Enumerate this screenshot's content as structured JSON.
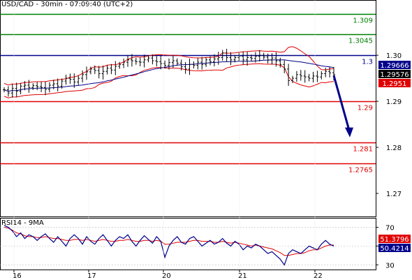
{
  "chart_data": {
    "type": "line",
    "title": "USD/CAD - 30min - 07:09:40 (UTC+2)",
    "price_axis": {
      "ylim": [
        1.265,
        1.312
      ],
      "ticks": [
        "1.30",
        "1.29",
        "1.28",
        "1.27"
      ]
    },
    "x_axis": {
      "ticks": [
        "16",
        "17",
        "20",
        "21",
        "22"
      ]
    },
    "levels": [
      {
        "value": 1.309,
        "label": "1.309",
        "color": "#008000"
      },
      {
        "value": 1.3045,
        "label": "1.3045",
        "color": "#008000"
      },
      {
        "value": 1.3,
        "label": "1.3",
        "color": "#00008b"
      },
      {
        "value": 1.29,
        "label": "1.29",
        "color": "#e00000"
      },
      {
        "value": 1.281,
        "label": "1.281",
        "color": "#e00000"
      },
      {
        "value": 1.2765,
        "label": "1.2765",
        "color": "#e00000"
      }
    ],
    "price_badges": [
      {
        "value": 1.29666,
        "label": "1.29666",
        "bg": "#00008b",
        "fg": "#ffffff"
      },
      {
        "value": 1.29576,
        "label": "1.29576",
        "bg": "#000000",
        "fg": "#ffffff"
      },
      {
        "value": 1.2951,
        "label": "1.2951",
        "bg": "#e00000",
        "fg": "#ffffff"
      }
    ],
    "price_series": [
      1.2925,
      1.2918,
      1.2928,
      1.2922,
      1.2933,
      1.2935,
      1.293,
      1.2934,
      1.2932,
      1.293,
      1.2926,
      1.2935,
      1.2938,
      1.2933,
      1.2944,
      1.295,
      1.2948,
      1.2942,
      1.295,
      1.2958,
      1.2964,
      1.297,
      1.2967,
      1.296,
      1.2965,
      1.2972,
      1.2968,
      1.2976,
      1.298,
      1.2985,
      1.299,
      1.2988,
      1.2986,
      1.2985,
      1.299,
      1.2994,
      1.2988,
      1.2986,
      1.2982,
      1.2978,
      1.2984,
      1.2988,
      1.2983,
      1.2975,
      1.297,
      1.298,
      1.2978,
      1.2985,
      1.298,
      1.299,
      1.2986,
      1.2992,
      1.2995,
      1.3005,
      1.2995,
      1.299,
      1.2995,
      1.2998,
      1.299,
      1.2995,
      1.2993,
      1.2998,
      1.3,
      1.2996,
      1.299,
      1.2994,
      1.2988,
      1.298,
      1.297,
      1.2945,
      1.295,
      1.2958,
      1.2955,
      1.2953,
      1.295,
      1.2955,
      1.2953,
      1.296,
      1.2965,
      1.2962,
      1.2958
    ],
    "forecast_arrow": {
      "from": 1.2956,
      "to": 1.2825,
      "color": "#00008b"
    },
    "rsi": {
      "title": "RSI14 - 9MA",
      "ylim": [
        25,
        80
      ],
      "ticks": [
        "70",
        "50",
        "30"
      ],
      "badges": [
        {
          "value": 51.3796,
          "label": "51.3796",
          "bg": "#e00000",
          "fg": "#ffffff"
        },
        {
          "value": 50.4214,
          "label": "50.4214",
          "bg": "#00008b",
          "fg": "#ffffff"
        }
      ],
      "series": [
        72,
        70,
        66,
        60,
        64,
        58,
        62,
        60,
        56,
        60,
        63,
        58,
        54,
        60,
        55,
        50,
        58,
        62,
        58,
        52,
        60,
        55,
        52,
        58,
        62,
        56,
        50,
        56,
        60,
        58,
        62,
        55,
        50,
        56,
        61,
        57,
        53,
        60,
        55,
        38,
        50,
        56,
        60,
        54,
        52,
        58,
        60,
        55,
        50,
        53,
        56,
        52,
        54,
        58,
        53,
        50,
        55,
        52,
        46,
        50,
        48,
        52,
        50,
        46,
        42,
        44,
        40,
        36,
        30,
        42,
        46,
        44,
        42,
        46,
        50,
        48,
        46,
        52,
        56,
        52,
        50
      ],
      "ma": [
        70,
        69,
        67,
        64,
        63,
        61,
        60,
        60,
        59,
        59,
        60,
        59,
        58,
        58,
        57,
        56,
        56,
        57,
        57,
        56,
        57,
        56,
        55,
        56,
        57,
        56,
        55,
        55,
        56,
        56,
        57,
        56,
        55,
        55,
        56,
        56,
        55,
        56,
        55,
        52,
        52,
        53,
        54,
        54,
        54,
        55,
        56,
        56,
        55,
        55,
        55,
        54,
        54,
        55,
        54,
        53,
        54,
        53,
        52,
        51,
        50,
        51,
        50,
        49,
        48,
        47,
        45,
        43,
        40,
        40,
        41,
        42,
        42,
        43,
        45,
        46,
        46,
        48,
        50,
        51,
        51
      ]
    }
  }
}
